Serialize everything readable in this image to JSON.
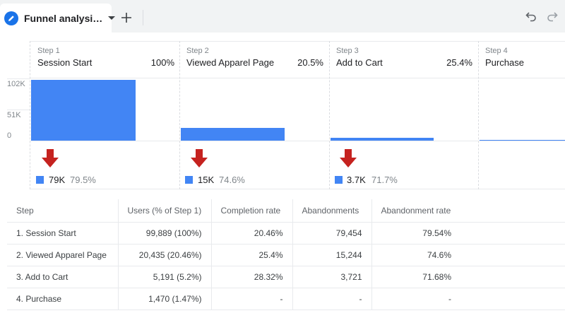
{
  "tabbar": {
    "active_tab_label": "Funnel analysi…",
    "add_tab_symbol": "+"
  },
  "chart_data": {
    "type": "bar",
    "yticks": [
      "102K",
      "51K",
      "0"
    ],
    "ylim": [
      0,
      102000
    ],
    "steps": [
      {
        "step_label": "Step 1",
        "name": "Session Start",
        "percent": "100%",
        "value": 99889,
        "abandon_value": "79K",
        "abandon_rate": "79.5%"
      },
      {
        "step_label": "Step 2",
        "name": "Viewed Apparel Page",
        "percent": "20.5%",
        "value": 20435,
        "abandon_value": "15K",
        "abandon_rate": "74.6%"
      },
      {
        "step_label": "Step 3",
        "name": "Add to Cart",
        "percent": "25.4%",
        "value": 5191,
        "abandon_value": "3.7K",
        "abandon_rate": "71.7%"
      },
      {
        "step_label": "Step 4",
        "name": "Purchase",
        "percent": "",
        "value": 1470,
        "abandon_value": "",
        "abandon_rate": ""
      }
    ],
    "colors": {
      "bar": "#4285f4",
      "arrow": "#c5221f"
    }
  },
  "table": {
    "headers": [
      "Step",
      "Users (% of Step 1)",
      "Completion rate",
      "Abandonments",
      "Abandonment rate"
    ],
    "rows": [
      [
        "1. Session Start",
        "99,889 (100%)",
        "20.46%",
        "79,454",
        "79.54%"
      ],
      [
        "2. Viewed Apparel Page",
        "20,435 (20.46%)",
        "25.4%",
        "15,244",
        "74.6%"
      ],
      [
        "3. Add to Cart",
        "5,191 (5.2%)",
        "28.32%",
        "3,721",
        "71.68%"
      ],
      [
        "4. Purchase",
        "1,470 (1.47%)",
        "-",
        "-",
        "-"
      ]
    ]
  }
}
